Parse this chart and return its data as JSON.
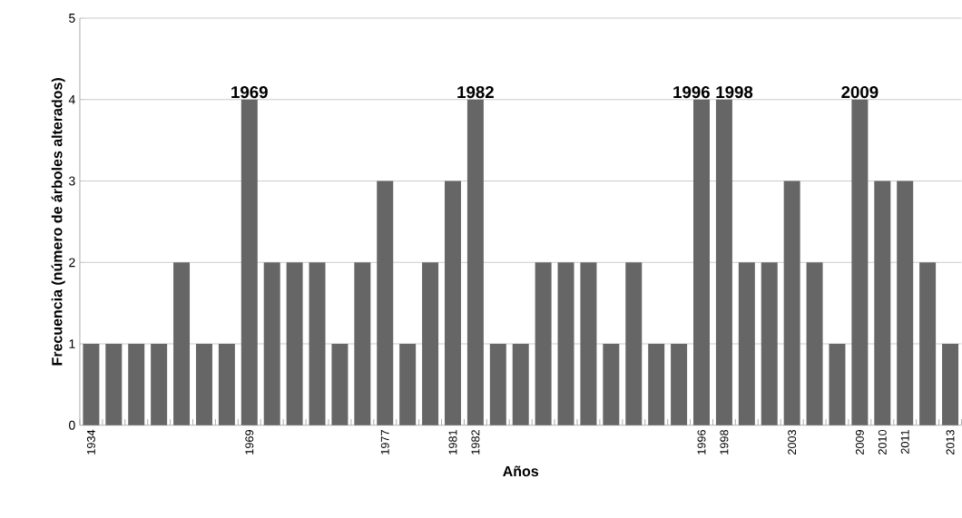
{
  "chart_data": {
    "type": "bar",
    "xlabel": "Años",
    "ylabel": "Frecuencia (número de árboles alterados)",
    "categories": [
      "1934",
      null,
      null,
      null,
      null,
      null,
      null,
      "1969",
      null,
      null,
      null,
      null,
      null,
      "1977",
      null,
      null,
      "1981",
      "1982",
      null,
      null,
      null,
      null,
      null,
      null,
      null,
      null,
      null,
      "1996",
      "1998",
      null,
      null,
      "2003",
      null,
      null,
      "2009",
      "2010",
      "2011",
      null,
      "2013"
    ],
    "values": [
      1,
      1,
      1,
      1,
      2,
      1,
      1,
      4,
      2,
      2,
      2,
      1,
      2,
      3,
      1,
      2,
      3,
      4,
      1,
      1,
      2,
      2,
      2,
      1,
      2,
      1,
      1,
      4,
      4,
      2,
      2,
      3,
      2,
      1,
      4,
      3,
      3,
      2,
      1
    ],
    "color": "#666666",
    "ylim": [
      0,
      5
    ],
    "yticks": [
      0,
      1,
      2,
      3,
      4,
      5
    ],
    "grid": "y",
    "annotations": [
      {
        "text": "1969",
        "x": "1969",
        "y": 4
      },
      {
        "text": "1982",
        "x": "1982",
        "y": 4
      },
      {
        "text": "1996",
        "x": "1996",
        "y": 4
      },
      {
        "text": "1998",
        "x": "1998",
        "y": 4
      },
      {
        "text": "2009",
        "x": "2009",
        "y": 4
      }
    ]
  }
}
